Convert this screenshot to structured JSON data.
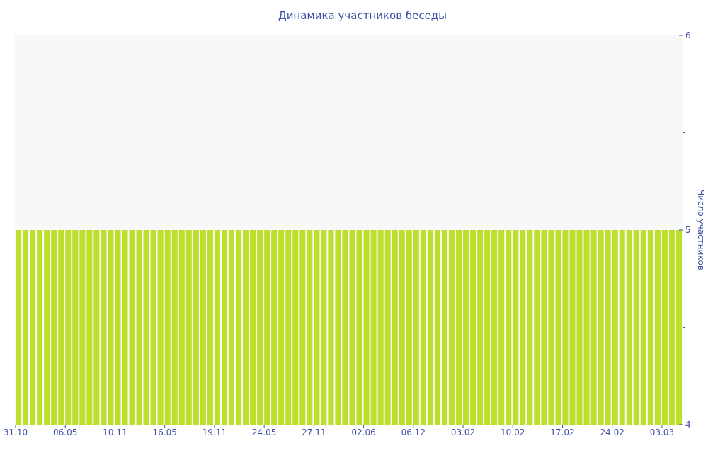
{
  "chart_data": {
    "type": "bar",
    "title": "Динамика участников беседы",
    "ylabel": "Число участников",
    "xlabel": "",
    "y_axis_side": "right",
    "ylim": [
      4,
      6
    ],
    "yticks": [
      "6",
      "5",
      "4"
    ],
    "xtick_labels": [
      "31.10",
      "06.05",
      "10.11",
      "16.05",
      "19.11",
      "24.05",
      "27.11",
      "02.06",
      "06.12",
      "03.02",
      "10.02",
      "17.02",
      "24.02",
      "03.03"
    ],
    "xtick_every_n_bars": 7,
    "values": [
      5,
      5,
      5,
      5,
      5,
      5,
      5,
      5,
      5,
      5,
      5,
      5,
      5,
      5,
      5,
      5,
      5,
      5,
      5,
      5,
      5,
      5,
      5,
      5,
      5,
      5,
      5,
      5,
      5,
      5,
      5,
      5,
      5,
      5,
      5,
      5,
      5,
      5,
      5,
      5,
      5,
      5,
      5,
      5,
      5,
      5,
      5,
      5,
      5,
      5,
      5,
      5,
      5,
      5,
      5,
      5,
      5,
      5,
      5,
      5,
      5,
      5,
      5,
      5,
      5,
      5,
      5,
      5,
      5,
      5,
      5,
      5,
      5,
      5,
      5,
      5,
      5,
      5,
      5,
      5,
      5,
      5,
      5,
      5,
      5,
      5,
      5,
      5,
      5,
      5,
      5,
      5,
      5,
      5
    ],
    "grid": false,
    "legend": "none",
    "colors": {
      "bar": "#bcdf2c",
      "plot_background": "#f8f8f8",
      "axis": "#3f51a5"
    }
  }
}
